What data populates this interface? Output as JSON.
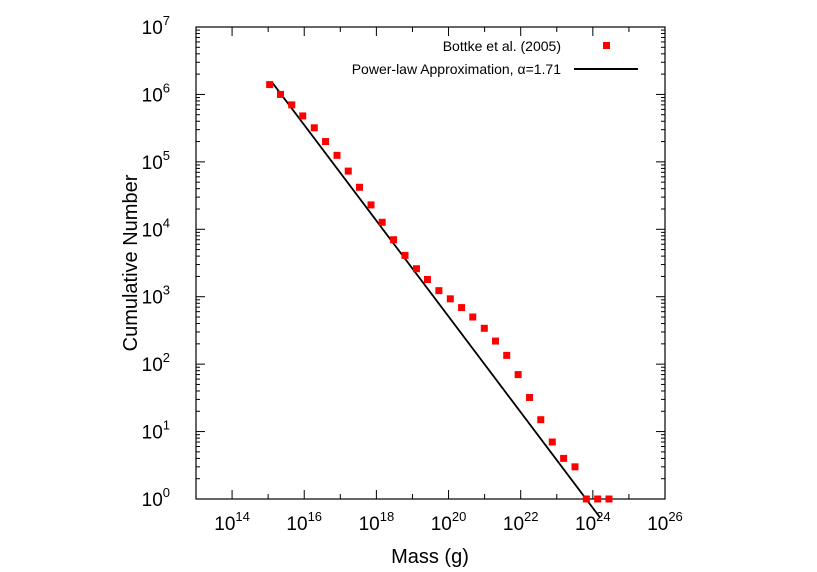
{
  "chart_data": {
    "type": "scatter",
    "xlabel": "Mass (g)",
    "ylabel": "Cumulative Number",
    "x_scale": "log",
    "y_scale": "log",
    "xlim": [
      10000000000000.0,
      1e+26
    ],
    "ylim": [
      1,
      10000000.0
    ],
    "x_ticks": [
      {
        "base": "10",
        "exp": "14",
        "value": 100000000000000.0
      },
      {
        "base": "10",
        "exp": "16",
        "value": 1e+16
      },
      {
        "base": "10",
        "exp": "18",
        "value": 1e+18
      },
      {
        "base": "10",
        "exp": "20",
        "value": 1e+20
      },
      {
        "base": "10",
        "exp": "22",
        "value": 1e+22
      },
      {
        "base": "10",
        "exp": "24",
        "value": 1e+24
      },
      {
        "base": "10",
        "exp": "26",
        "value": 1e+26
      }
    ],
    "y_ticks": [
      {
        "base": "10",
        "exp": "0",
        "value": 1
      },
      {
        "base": "10",
        "exp": "1",
        "value": 10
      },
      {
        "base": "10",
        "exp": "2",
        "value": 100
      },
      {
        "base": "10",
        "exp": "3",
        "value": 1000
      },
      {
        "base": "10",
        "exp": "4",
        "value": 10000
      },
      {
        "base": "10",
        "exp": "5",
        "value": 100000
      },
      {
        "base": "10",
        "exp": "6",
        "value": 1000000
      },
      {
        "base": "10",
        "exp": "7",
        "value": 10000000
      }
    ],
    "grid": false,
    "legend_position": "top-right",
    "series": [
      {
        "name": "Bottke et al. (2005)",
        "kind": "points",
        "marker": "square",
        "color": "#ff0000",
        "points": [
          [
            1100000000000000.0,
            1400000
          ],
          [
            2200000000000000.0,
            1000000
          ],
          [
            4500000000000000.0,
            700000
          ],
          [
            9100000000000000.0,
            480000
          ],
          [
            1.9e+16,
            320000
          ],
          [
            3.9e+16,
            200000
          ],
          [
            8.1e+16,
            125000
          ],
          [
            1.66e+17,
            73000
          ],
          [
            3.4e+17,
            42000
          ],
          [
            7.1e+17,
            23000
          ],
          [
            1.45e+18,
            12700
          ],
          [
            3e+18,
            7000
          ],
          [
            6.2e+18,
            4100
          ],
          [
            1.29e+19,
            2600
          ],
          [
            2.6e+19,
            1800
          ],
          [
            5.4e+19,
            1230
          ],
          [
            1.12e+20,
            930
          ],
          [
            2.3e+20,
            690
          ],
          [
            4.7e+20,
            500
          ],
          [
            9.8e+20,
            340
          ],
          [
            2e+21,
            220
          ],
          [
            4.1e+21,
            135
          ],
          [
            8.5e+21,
            70
          ],
          [
            1.76e+22,
            32
          ],
          [
            3.6e+22,
            15
          ],
          [
            7.5e+22,
            7
          ],
          [
            1.55e+23,
            4
          ],
          [
            3.2e+23,
            3
          ],
          [
            6.6e+23,
            1
          ],
          [
            1.36e+24,
            1
          ],
          [
            2.8e+24,
            1
          ]
        ]
      },
      {
        "name": "Power-law Approximation, ",
        "name_symbol": "α",
        "name_value": "=1.71",
        "kind": "line",
        "color": "#000000",
        "alpha": 1.71,
        "x_range": [
          1300000000000000.0,
          1.6e+24
        ],
        "y_start": 1500000
      }
    ]
  }
}
